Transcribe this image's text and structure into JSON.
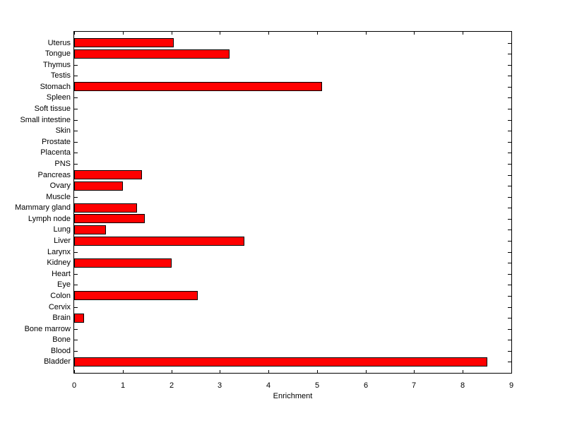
{
  "figure": {
    "background": "#ffffff",
    "axes_color": "#000000"
  },
  "chart_data": {
    "type": "bar",
    "orientation": "horizontal",
    "title": "",
    "xlabel": "Enrichment",
    "ylabel": "",
    "xlim": [
      0,
      9
    ],
    "xticks": [
      0,
      1,
      2,
      3,
      4,
      5,
      6,
      7,
      8,
      9
    ],
    "grid": false,
    "legend": "none",
    "bar_color": "#ff0000",
    "bar_edge_color": "#000000",
    "categories_order": "top-to-bottom",
    "categories": [
      "Uterus",
      "Tongue",
      "Thymus",
      "Testis",
      "Stomach",
      "Spleen",
      "Soft tissue",
      "Small intestine",
      "Skin",
      "Prostate",
      "Placenta",
      "PNS",
      "Pancreas",
      "Ovary",
      "Muscle",
      "Mammary gland",
      "Lymph node",
      "Lung",
      "Liver",
      "Larynx",
      "Kidney",
      "Heart",
      "Eye",
      "Colon",
      "Cervix",
      "Brain",
      "Bone marrow",
      "Bone",
      "Blood",
      "Bladder"
    ],
    "values": [
      2.05,
      3.2,
      0,
      0,
      5.1,
      0,
      0,
      0,
      0,
      0,
      0,
      0,
      1.4,
      1.0,
      0,
      1.3,
      1.45,
      0.65,
      3.5,
      0,
      2.0,
      0,
      0,
      2.55,
      0,
      0.2,
      0,
      0,
      0,
      8.5
    ]
  }
}
